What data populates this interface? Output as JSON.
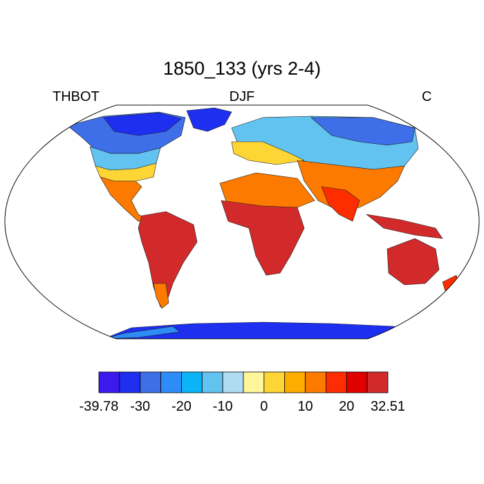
{
  "title": "1850_133 (yrs 2-4)",
  "left_label": "THBOT",
  "center_label": "DJF",
  "right_label": "C",
  "colorbar": {
    "colors": [
      "#3c1aee",
      "#1e2ff0",
      "#3e6ee8",
      "#2d8cf5",
      "#0ab4f7",
      "#63c3f0",
      "#b0dcf2",
      "#fff59a",
      "#fdd535",
      "#fdad00",
      "#fd7a00",
      "#fd2d00",
      "#e00000",
      "#d22a2a"
    ],
    "tick_labels": [
      "-39.78",
      "-30",
      "-20",
      "-10",
      "0",
      "10",
      "20",
      "32.51"
    ]
  },
  "map": {
    "projection": "Robinson",
    "ocean_color": "#ffffff",
    "outline_color": "#000000"
  }
}
